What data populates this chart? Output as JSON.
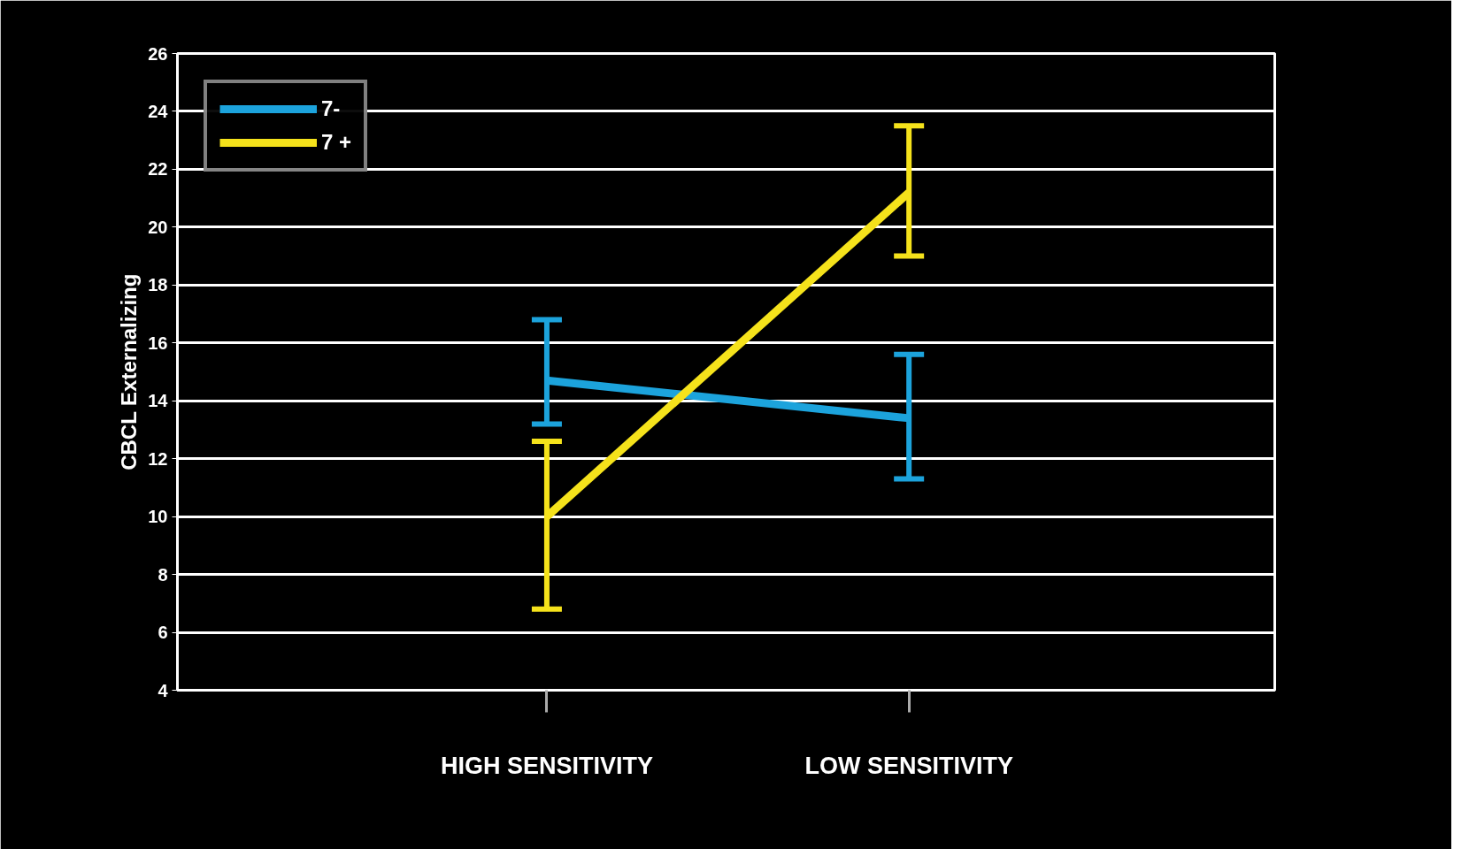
{
  "chart_data": {
    "type": "line",
    "ylabel": "CBCL Externalizing",
    "categories": [
      "HIGH SENSITIVITY",
      "LOW SENSITIVITY"
    ],
    "series": [
      {
        "name": "7-",
        "color": "#1ca3dc",
        "values": [
          14.7,
          13.4
        ],
        "errors": [
          [
            13.2,
            16.8
          ],
          [
            11.3,
            15.6
          ]
        ]
      },
      {
        "name": "7 +",
        "color": "#f5e21b",
        "values": [
          10.0,
          21.2
        ],
        "errors": [
          [
            6.8,
            12.6
          ],
          [
            19.0,
            23.5
          ]
        ]
      }
    ],
    "ylim": [
      4,
      26
    ],
    "yticks": [
      4,
      6,
      8,
      10,
      12,
      14,
      16,
      18,
      20,
      22,
      24,
      26
    ],
    "grid": "y",
    "legend": "top left"
  }
}
